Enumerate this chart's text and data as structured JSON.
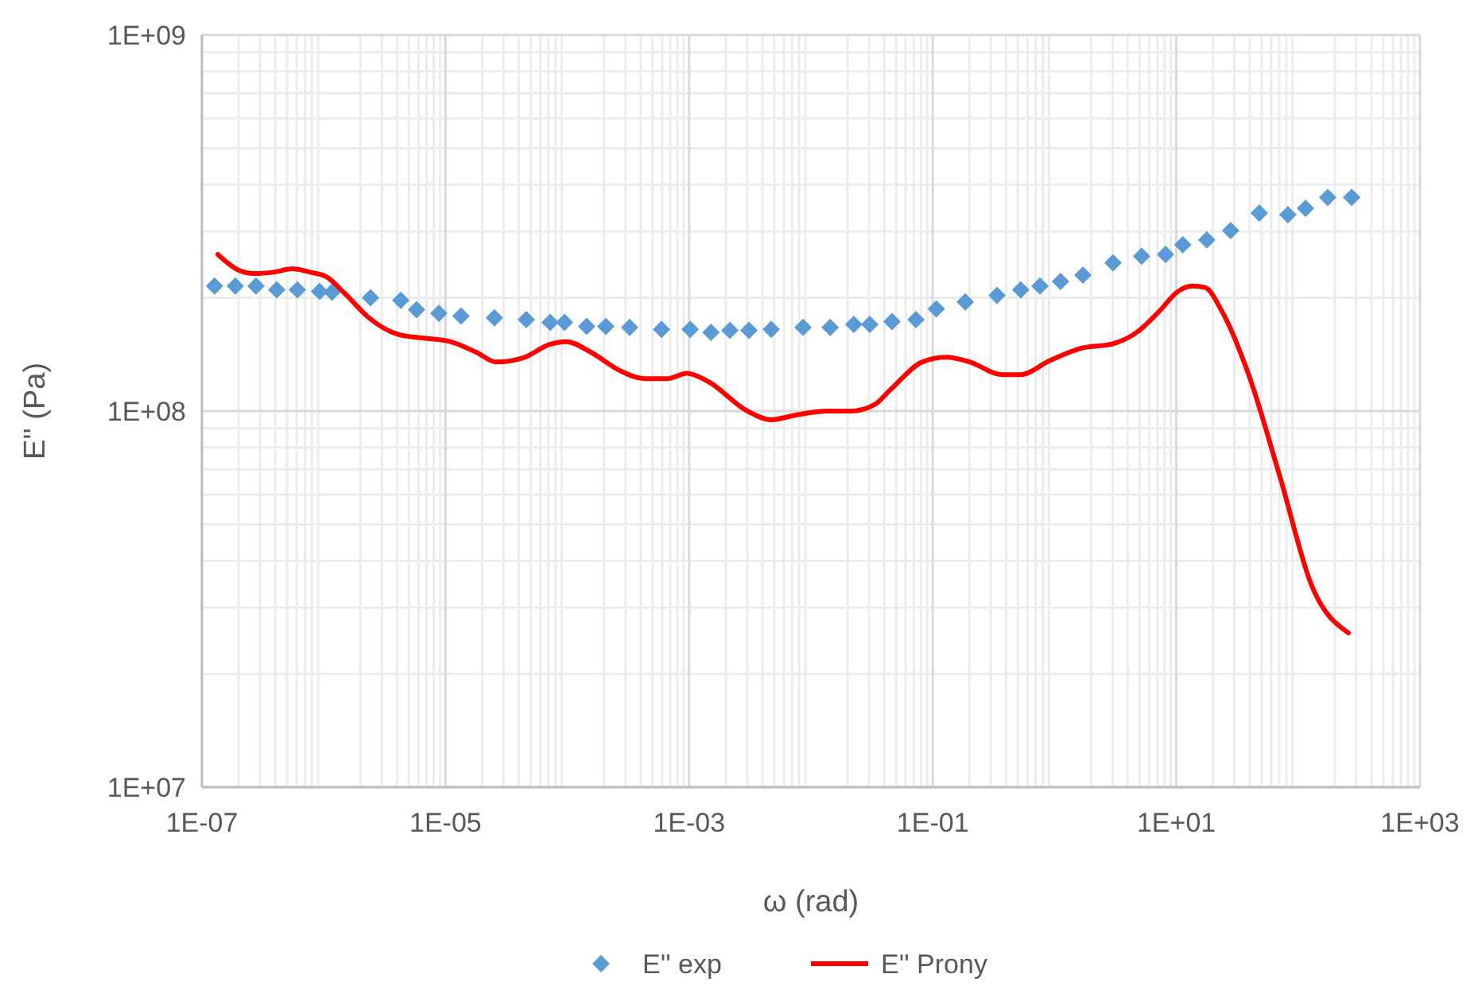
{
  "chart_data": {
    "type": "scatter",
    "xlabel": "ω (rad)",
    "ylabel": "E'' (Pa)",
    "log": "xy",
    "grid": true,
    "legend": "bottom",
    "xlim": [
      1e-07,
      1000
    ],
    "xticks": [
      {
        "value": 1e-07,
        "label": "1E-07"
      },
      {
        "value": 1e-05,
        "label": "1E-05"
      },
      {
        "value": 0.001,
        "label": "1E-03"
      },
      {
        "value": 0.1,
        "label": "1E-01"
      },
      {
        "value": 10,
        "label": "1E+01"
      },
      {
        "value": 1000,
        "label": "1E+03"
      }
    ],
    "ylim": [
      10000000,
      1000000000
    ],
    "yticks": [
      {
        "value": 10000000,
        "label": "1E+07"
      },
      {
        "value": 100000000,
        "label": "1E+08"
      },
      {
        "value": 1000000000,
        "label": "1E+09"
      }
    ],
    "series": [
      {
        "name": "E'' exp",
        "marker": "diamond",
        "color": "#5b9bd5",
        "x": [
          1.27e-07,
          1.88e-07,
          2.78e-07,
          4.11e-07,
          6.07e-07,
          9.25e-07,
          1.17e-06,
          2.42e-06,
          4.29e-06,
          5.78e-06,
          8.81e-06,
          1.34e-05,
          2.52e-05,
          4.6e-05,
          7.23e-05,
          9.48e-05,
          0.000144,
          0.000207,
          0.000325,
          0.000593,
          0.00102,
          0.00151,
          0.00216,
          0.0031,
          0.00472,
          0.00861,
          0.0144,
          0.0225,
          0.0304,
          0.0463,
          0.0728,
          0.107,
          0.185,
          0.337,
          0.528,
          0.759,
          1.12,
          1.71,
          3.02,
          5.19,
          8.15,
          11.3,
          17.8,
          27.9,
          48,
          82.4,
          115,
          175,
          275
        ],
        "values": [
          215000000.0,
          215000000.0,
          215000000.0,
          210000000.0,
          210000000.0,
          208000000.0,
          207000000.0,
          200000000.0,
          197000000.0,
          186000000.0,
          182000000.0,
          179000000.0,
          177000000.0,
          175000000.0,
          172000000.0,
          172000000.0,
          168000000.0,
          168000000.0,
          167000000.0,
          165000000.0,
          165000000.0,
          162000000.0,
          164000000.0,
          164000000.0,
          165000000.0,
          167000000.0,
          167000000.0,
          170000000.0,
          170000000.0,
          173000000.0,
          175000000.0,
          187000000.0,
          195000000.0,
          203000000.0,
          210000000.0,
          215000000.0,
          221000000.0,
          230000000.0,
          248000000.0,
          258000000.0,
          261000000.0,
          277000000.0,
          285000000.0,
          302000000.0,
          336000000.0,
          333000000.0,
          346000000.0,
          370000000.0,
          370000000.0
        ]
      },
      {
        "name": "E'' Prony",
        "type": "line",
        "marker": "none",
        "line_style": "solid",
        "color": "#ff0000",
        "x": [
          1.35e-07,
          2e-07,
          2.7e-07,
          3.87e-07,
          5.55e-07,
          7.72e-07,
          1.04e-06,
          1.5e-06,
          2.35e-06,
          4.04e-06,
          5.78e-06,
          1.09e-05,
          1.81e-05,
          2.6e-05,
          4.47e-05,
          7.01e-05,
          9.77e-05,
          0.000158,
          0.000271,
          0.000426,
          0.000668,
          0.000959,
          0.00142,
          0.00301,
          0.00472,
          0.00741,
          0.0135,
          0.0212,
          0.0333,
          0.045,
          0.082,
          0.129,
          0.202,
          0.369,
          0.528,
          0.908,
          1.66,
          3.02,
          4.74,
          7.45,
          10.1,
          13.6,
          17.3,
          23.3,
          38.9,
          71,
          129,
          259
        ],
        "values": [
          261000000.0,
          237000000.0,
          232000000.0,
          234000000.0,
          239000000.0,
          234000000.0,
          228000000.0,
          205000000.0,
          177000000.0,
          160000000.0,
          157000000.0,
          153000000.0,
          143000000.0,
          135000000.0,
          139000000.0,
          150000000.0,
          153000000.0,
          143000000.0,
          128000000.0,
          122000000.0,
          122000000.0,
          126000000.0,
          120000000.0,
          100000000.0,
          94800000.0,
          97500000.0,
          100000000.0,
          100000000.0,
          104000000.0,
          114000000.0,
          135000000.0,
          139000000.0,
          135000000.0,
          125000000.0,
          125000000.0,
          136000000.0,
          147000000.0,
          151000000.0,
          162000000.0,
          186000000.0,
          207000000.0,
          215000000.0,
          213000000.0,
          186000000.0,
          126000000.0,
          66800000.0,
          34400000.0,
          25700000.0
        ]
      }
    ]
  }
}
